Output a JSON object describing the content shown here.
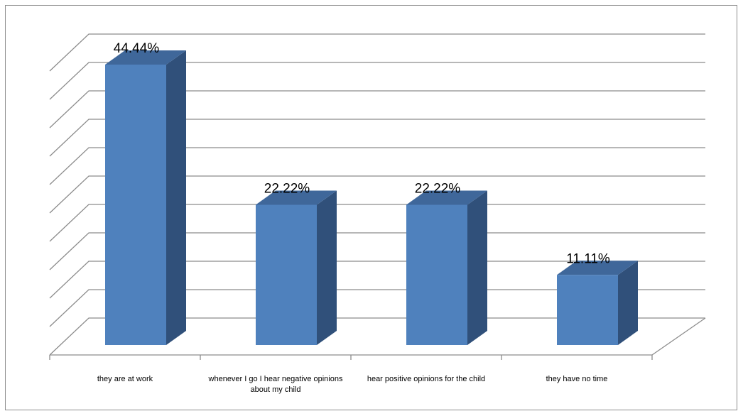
{
  "chart_data": {
    "type": "bar",
    "title": "",
    "xlabel": "",
    "ylabel": "",
    "categories": [
      "they are at work",
      "whenever I go I hear negative opinions about my child",
      "hear positive opinions for the child",
      "they have no time"
    ],
    "values": [
      44.44,
      22.22,
      22.22,
      11.11
    ],
    "value_labels": [
      "44.44%",
      "22.22%",
      "22.22%",
      "11.11%"
    ],
    "unit": "%",
    "ylim": [
      0,
      50
    ],
    "grid": true,
    "three_d": true,
    "bar_color": "#4f81bd",
    "bar_side_color": "#30507a",
    "bar_top_color": "#3f679a",
    "gridline_color": "#8c8c8c"
  }
}
